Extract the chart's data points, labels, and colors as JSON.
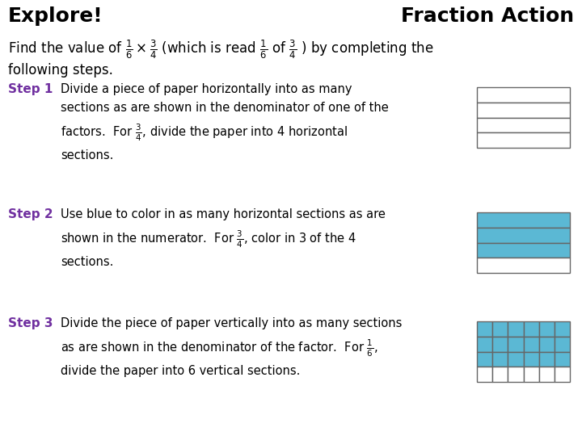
{
  "title_left": "Explore!",
  "title_right": "Fraction Action",
  "bg_color": "#ffffff",
  "blue_color": "#5BB8D4",
  "grid_color": "#666666",
  "step_color": "#7030A0",
  "step1_label": "Step 1",
  "step1_text": "Divide a piece of paper horizontally into as many\nsections as are shown in the denominator of one of the\nfactors.  For $\\frac{3}{4}$, divide the paper into 4 horizontal\nsections.",
  "step2_label": "Step 2",
  "step2_text": "Use blue to color in as many horizontal sections as are\nshown in the numerator.  For $\\frac{3}{4}$, color in 3 of the 4\nsections.",
  "step3_label": "Step 3",
  "step3_text": "Divide the piece of paper vertically into as many sections\nas are shown in the denominator of the factor.  For $\\frac{1}{6}$,\ndivide the paper into 6 vertical sections.",
  "intro_line1": "Find the value of $\\frac{1}{6} \\times \\frac{3}{4}$ (which is read $\\frac{1}{6}$ of $\\frac{3}{4}$ ) by completing the",
  "intro_line2": "following steps."
}
